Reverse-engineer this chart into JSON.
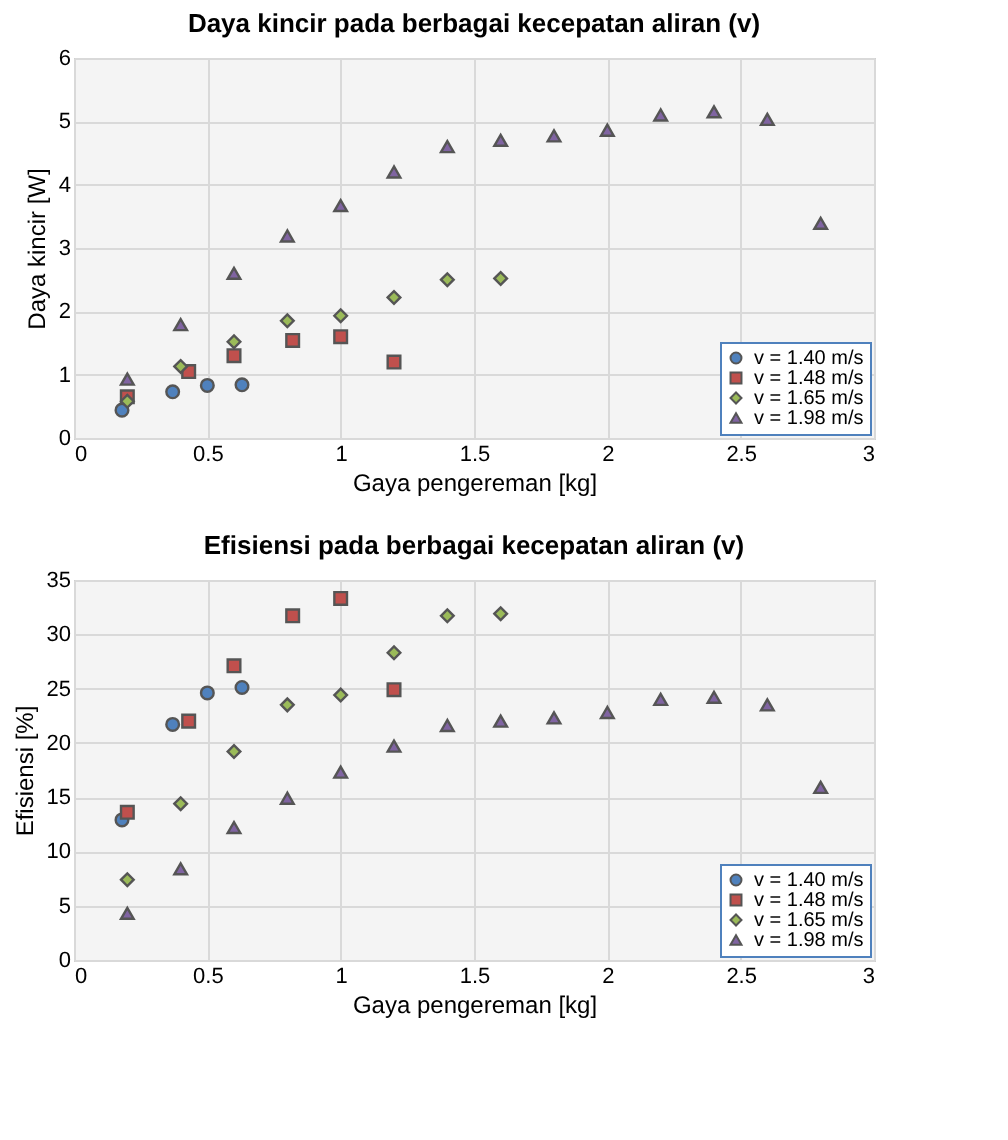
{
  "chart_data": [
    {
      "type": "scatter",
      "title": "Daya kincir pada berbagai kecepatan aliran (v)",
      "xlabel": "Gaya pengereman [kg]",
      "ylabel": "Daya kincir [W]",
      "xlim": [
        0,
        3
      ],
      "xticks": [
        0,
        0.5,
        1,
        1.5,
        2,
        2.5,
        3
      ],
      "ylim": [
        0,
        6
      ],
      "yticks": [
        0,
        1,
        2,
        3,
        4,
        5,
        6
      ],
      "grid": true,
      "legend": "bottom right",
      "series": [
        {
          "name": "v = 1.40 m/s",
          "color": "#4f81bd",
          "marker": "circle",
          "x": [
            0.18,
            0.37,
            0.5,
            0.63
          ],
          "values": [
            0.44,
            0.73,
            0.83,
            0.84
          ]
        },
        {
          "name": "v = 1.48 m/s",
          "color": "#c0504d",
          "marker": "square",
          "x": [
            0.2,
            0.43,
            0.6,
            0.82,
            1.0,
            1.2
          ],
          "values": [
            0.65,
            1.05,
            1.3,
            1.54,
            1.6,
            1.2
          ]
        },
        {
          "name": "v = 1.65 m/s",
          "color": "#9bbb59",
          "marker": "diamond",
          "x": [
            0.2,
            0.4,
            0.6,
            0.8,
            1.0,
            1.2,
            1.4,
            1.6
          ],
          "values": [
            0.58,
            1.13,
            1.52,
            1.85,
            1.93,
            2.22,
            2.5,
            2.52
          ]
        },
        {
          "name": "v = 1.98 m/s",
          "color": "#8064a2",
          "marker": "triangle",
          "x": [
            0.2,
            0.4,
            0.6,
            0.8,
            1.0,
            1.2,
            1.4,
            1.6,
            1.8,
            2.0,
            2.2,
            2.4,
            2.6,
            2.8
          ],
          "values": [
            0.93,
            1.79,
            2.6,
            3.19,
            3.67,
            4.2,
            4.6,
            4.7,
            4.77,
            4.86,
            5.1,
            5.15,
            5.03,
            3.39
          ]
        }
      ]
    },
    {
      "type": "scatter",
      "title": "Efisiensi pada berbagai kecepatan aliran (v)",
      "xlabel": "Gaya pengereman [kg]",
      "ylabel": "Efisiensi [%]",
      "xlim": [
        0,
        3
      ],
      "xticks": [
        0,
        0.5,
        1,
        1.5,
        2,
        2.5,
        3
      ],
      "ylim": [
        0,
        35
      ],
      "yticks": [
        0,
        5,
        10,
        15,
        20,
        25,
        30,
        35
      ],
      "grid": true,
      "legend": "bottom right",
      "series": [
        {
          "name": "v = 1.40 m/s",
          "color": "#4f81bd",
          "marker": "circle",
          "x": [
            0.18,
            0.37,
            0.5,
            0.63
          ],
          "values": [
            12.9,
            21.7,
            24.6,
            25.1
          ]
        },
        {
          "name": "v = 1.48 m/s",
          "color": "#c0504d",
          "marker": "square",
          "x": [
            0.2,
            0.43,
            0.6,
            0.82,
            1.0,
            1.2
          ],
          "values": [
            13.6,
            22,
            27.1,
            31.7,
            33.3,
            24.9
          ]
        },
        {
          "name": "v = 1.65 m/s",
          "color": "#9bbb59",
          "marker": "diamond",
          "x": [
            0.2,
            0.4,
            0.6,
            0.8,
            1.0,
            1.2,
            1.4,
            1.6
          ],
          "values": [
            7.4,
            14.4,
            19.2,
            23.5,
            24.4,
            28.3,
            31.7,
            31.9
          ]
        },
        {
          "name": "v = 1.98 m/s",
          "color": "#8064a2",
          "marker": "triangle",
          "x": [
            0.2,
            0.4,
            0.6,
            0.8,
            1.0,
            1.2,
            1.4,
            1.6,
            1.8,
            2.0,
            2.2,
            2.4,
            2.6,
            2.8
          ],
          "values": [
            4.3,
            8.4,
            12.2,
            14.9,
            17.3,
            19.7,
            21.6,
            22,
            22.3,
            22.8,
            24,
            24.2,
            23.5,
            15.9
          ]
        }
      ]
    }
  ]
}
